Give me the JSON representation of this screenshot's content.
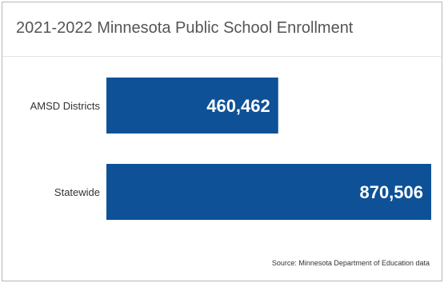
{
  "title": "2021-2022 Minnesota Public School Enrollment",
  "source": "Source: Minnesota Department of Education data",
  "colors": {
    "bar": "#0e5197",
    "bar_label": "#ffffff",
    "category_label": "#333333"
  },
  "chart_data": {
    "type": "bar",
    "orientation": "horizontal",
    "title": "2021-2022 Minnesota Public School Enrollment",
    "xlabel": "",
    "ylabel": "",
    "grid": false,
    "categories": [
      "AMSD Districts",
      "Statewide"
    ],
    "values": [
      460462,
      870506
    ],
    "value_labels": [
      "460,462",
      "870,506"
    ],
    "xlim": [
      0,
      870506
    ]
  }
}
